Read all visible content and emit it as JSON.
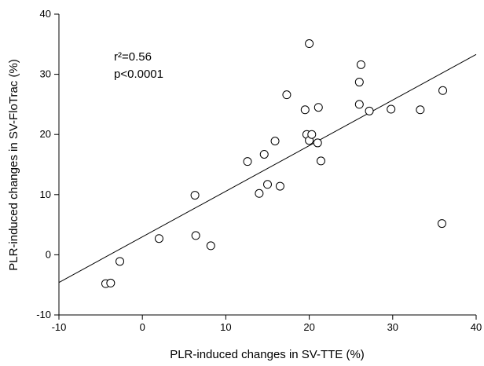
{
  "chart_data": {
    "type": "scatter",
    "title": "",
    "xlabel": "PLR-induced changes in SV-TTE (%)",
    "ylabel": "PLR-induced changes in SV-FloTrac (%)",
    "xlim": [
      -10,
      40
    ],
    "ylim": [
      -10,
      40
    ],
    "xticks": [
      -10,
      0,
      10,
      20,
      30,
      40
    ],
    "yticks": [
      -10,
      0,
      10,
      20,
      30,
      40
    ],
    "grid": false,
    "annotations": [
      "r²=0.56",
      "p<0.0001"
    ],
    "regression_line": {
      "x": [
        -10,
        40
      ],
      "y": [
        -4.6,
        33.3
      ]
    },
    "points": [
      {
        "x": -4.4,
        "y": -4.8
      },
      {
        "x": -3.8,
        "y": -4.7
      },
      {
        "x": -2.7,
        "y": -1.1
      },
      {
        "x": 2.0,
        "y": 2.7
      },
      {
        "x": 6.3,
        "y": 9.9
      },
      {
        "x": 6.4,
        "y": 3.2
      },
      {
        "x": 8.2,
        "y": 1.5
      },
      {
        "x": 12.6,
        "y": 15.5
      },
      {
        "x": 14.0,
        "y": 10.2
      },
      {
        "x": 14.6,
        "y": 16.7
      },
      {
        "x": 15.0,
        "y": 11.7
      },
      {
        "x": 15.9,
        "y": 18.9
      },
      {
        "x": 16.5,
        "y": 11.4
      },
      {
        "x": 17.3,
        "y": 26.6
      },
      {
        "x": 19.5,
        "y": 24.1
      },
      {
        "x": 19.7,
        "y": 20.0
      },
      {
        "x": 20.0,
        "y": 19.0
      },
      {
        "x": 20.0,
        "y": 35.1
      },
      {
        "x": 20.3,
        "y": 20.0
      },
      {
        "x": 21.0,
        "y": 18.6
      },
      {
        "x": 21.1,
        "y": 24.5
      },
      {
        "x": 21.4,
        "y": 15.6
      },
      {
        "x": 26.0,
        "y": 28.7
      },
      {
        "x": 26.0,
        "y": 25.0
      },
      {
        "x": 26.2,
        "y": 31.6
      },
      {
        "x": 27.2,
        "y": 23.9
      },
      {
        "x": 29.8,
        "y": 24.2
      },
      {
        "x": 33.3,
        "y": 24.1
      },
      {
        "x": 36.0,
        "y": 27.3
      },
      {
        "x": 35.9,
        "y": 5.2
      }
    ]
  }
}
